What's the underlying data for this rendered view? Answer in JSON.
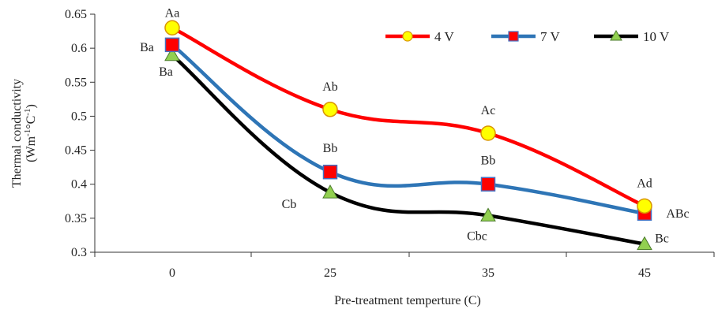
{
  "chart_data": {
    "type": "line",
    "title": "",
    "xlabel": "Pre-treatment temperture (C)",
    "ylabel": "Thermal conductivity",
    "ylabel_unit_prefix": "(Wm",
    "ylabel_unit_sup1": "-1",
    "ylabel_unit_mid": "°C",
    "ylabel_unit_sup2": "-1",
    "ylabel_unit_suffix": ")",
    "categories": [
      "0",
      "25",
      "35",
      "45"
    ],
    "ylim": [
      0.3,
      0.65
    ],
    "yticks": [
      "0.3",
      "0.35",
      "0.4",
      "0.45",
      "0.5",
      "0.55",
      "0.6",
      "0.65"
    ],
    "grid": false,
    "legend_position": "top-right",
    "series": [
      {
        "name": "4 V",
        "color": "#ff0000",
        "marker": "circle",
        "marker_fill": "#ffff00",
        "values": [
          0.63,
          0.51,
          0.475,
          0.368
        ],
        "labels": [
          "Aa",
          "Ab",
          "Ac",
          "Ad"
        ]
      },
      {
        "name": "7 V",
        "color": "#2e75b6",
        "marker": "square",
        "marker_fill": "#ff0000",
        "values": [
          0.605,
          0.418,
          0.4,
          0.357
        ],
        "labels": [
          "Ba",
          "Bb",
          "Bb",
          "ABc"
        ]
      },
      {
        "name": "10 V",
        "color": "#000000",
        "marker": "triangle",
        "marker_fill": "#92d050",
        "values": [
          0.59,
          0.388,
          0.354,
          0.312
        ],
        "labels": [
          "Ba",
          "Cb",
          "Cbc",
          "Bc"
        ]
      }
    ]
  }
}
